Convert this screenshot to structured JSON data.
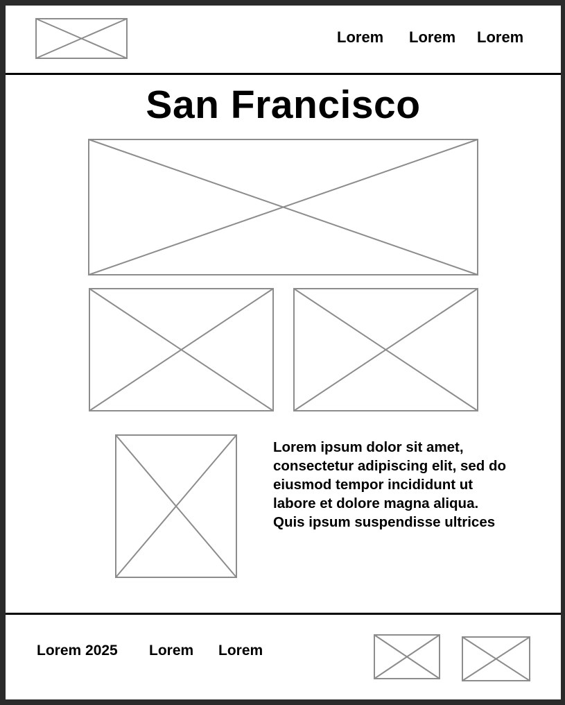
{
  "header": {
    "nav": [
      "Lorem",
      "Lorem",
      "Lorem"
    ]
  },
  "main": {
    "title": "San Francisco",
    "description": "Lorem ipsum dolor sit amet, consectetur adipiscing elit, sed do eiusmod tempor incididunt ut labore et dolore magna aliqua. Quis ipsum suspendisse ultrices"
  },
  "footer": {
    "copyright": "Lorem 2025",
    "links": [
      "Lorem",
      "Lorem"
    ]
  },
  "colors": {
    "placeholder_stroke": "#8c8c8c",
    "divider": "#000000",
    "backdrop": "#2b2b2b"
  }
}
